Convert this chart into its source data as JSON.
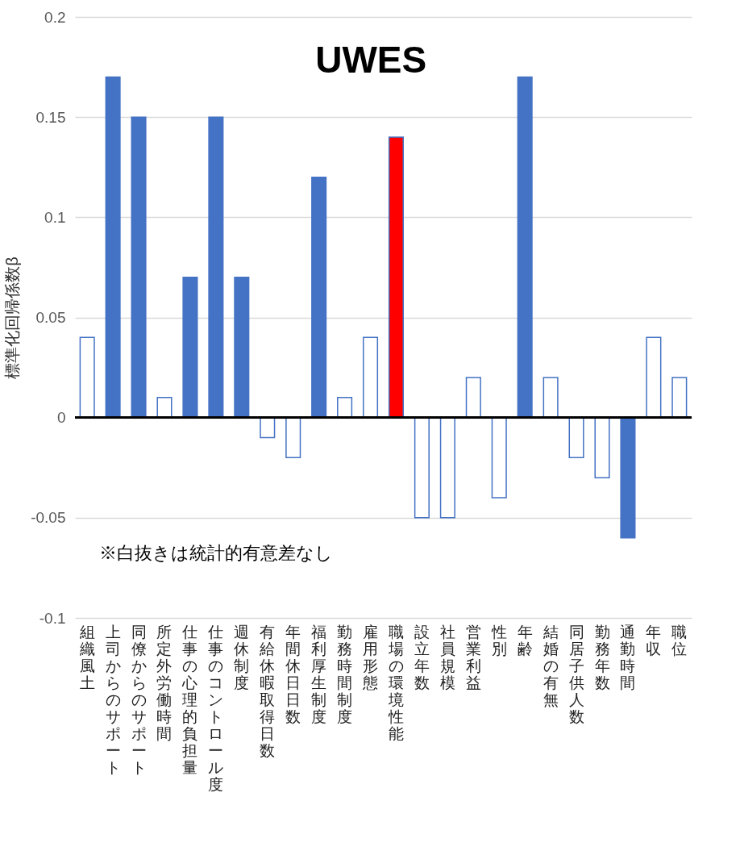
{
  "chart_data": {
    "type": "bar",
    "title": "UWES",
    "ylabel": "標準化回帰係数β",
    "categories": [
      "組織風土",
      "上司からのサポート",
      "同僚からのサポート",
      "所定外労働時間",
      "仕事の心理的負担量",
      "仕事のコントロール度",
      "週休制度",
      "有給休暇取得日数",
      "年間休日日数",
      "福利厚生制度",
      "勤務時間制度",
      "雇用形態",
      "職場の環境性能",
      "設立年数",
      "社員規模",
      "営業利益",
      "性別",
      "年齢",
      "結婚の有無",
      "同居子供人数",
      "勤務年数",
      "通勤時間",
      "年収",
      "職位"
    ],
    "values": [
      0.04,
      0.17,
      0.15,
      0.01,
      0.07,
      0.15,
      0.07,
      -0.01,
      -0.02,
      0.12,
      0.01,
      0.04,
      0.14,
      -0.05,
      -0.05,
      0.02,
      -0.04,
      0.17,
      0.02,
      -0.02,
      -0.03,
      -0.06,
      0.04,
      0.02
    ],
    "colors": [
      "#ffffff",
      "#4472c4",
      "#4472c4",
      "#ffffff",
      "#4472c4",
      "#4472c4",
      "#4472c4",
      "#ffffff",
      "#ffffff",
      "#4472c4",
      "#ffffff",
      "#ffffff",
      "#ff0000",
      "#ffffff",
      "#ffffff",
      "#ffffff",
      "#ffffff",
      "#4472c4",
      "#ffffff",
      "#ffffff",
      "#ffffff",
      "#4472c4",
      "#ffffff",
      "#ffffff"
    ],
    "color": "#4472c4",
    "ylim": [
      -0.1,
      0.2
    ],
    "yticks": [
      -0.1,
      -0.05,
      0,
      0.05,
      0.1,
      0.15,
      0.2
    ],
    "grid": "y",
    "legend": false,
    "annotations": [
      "※白抜きは統計的有意差なし"
    ]
  }
}
